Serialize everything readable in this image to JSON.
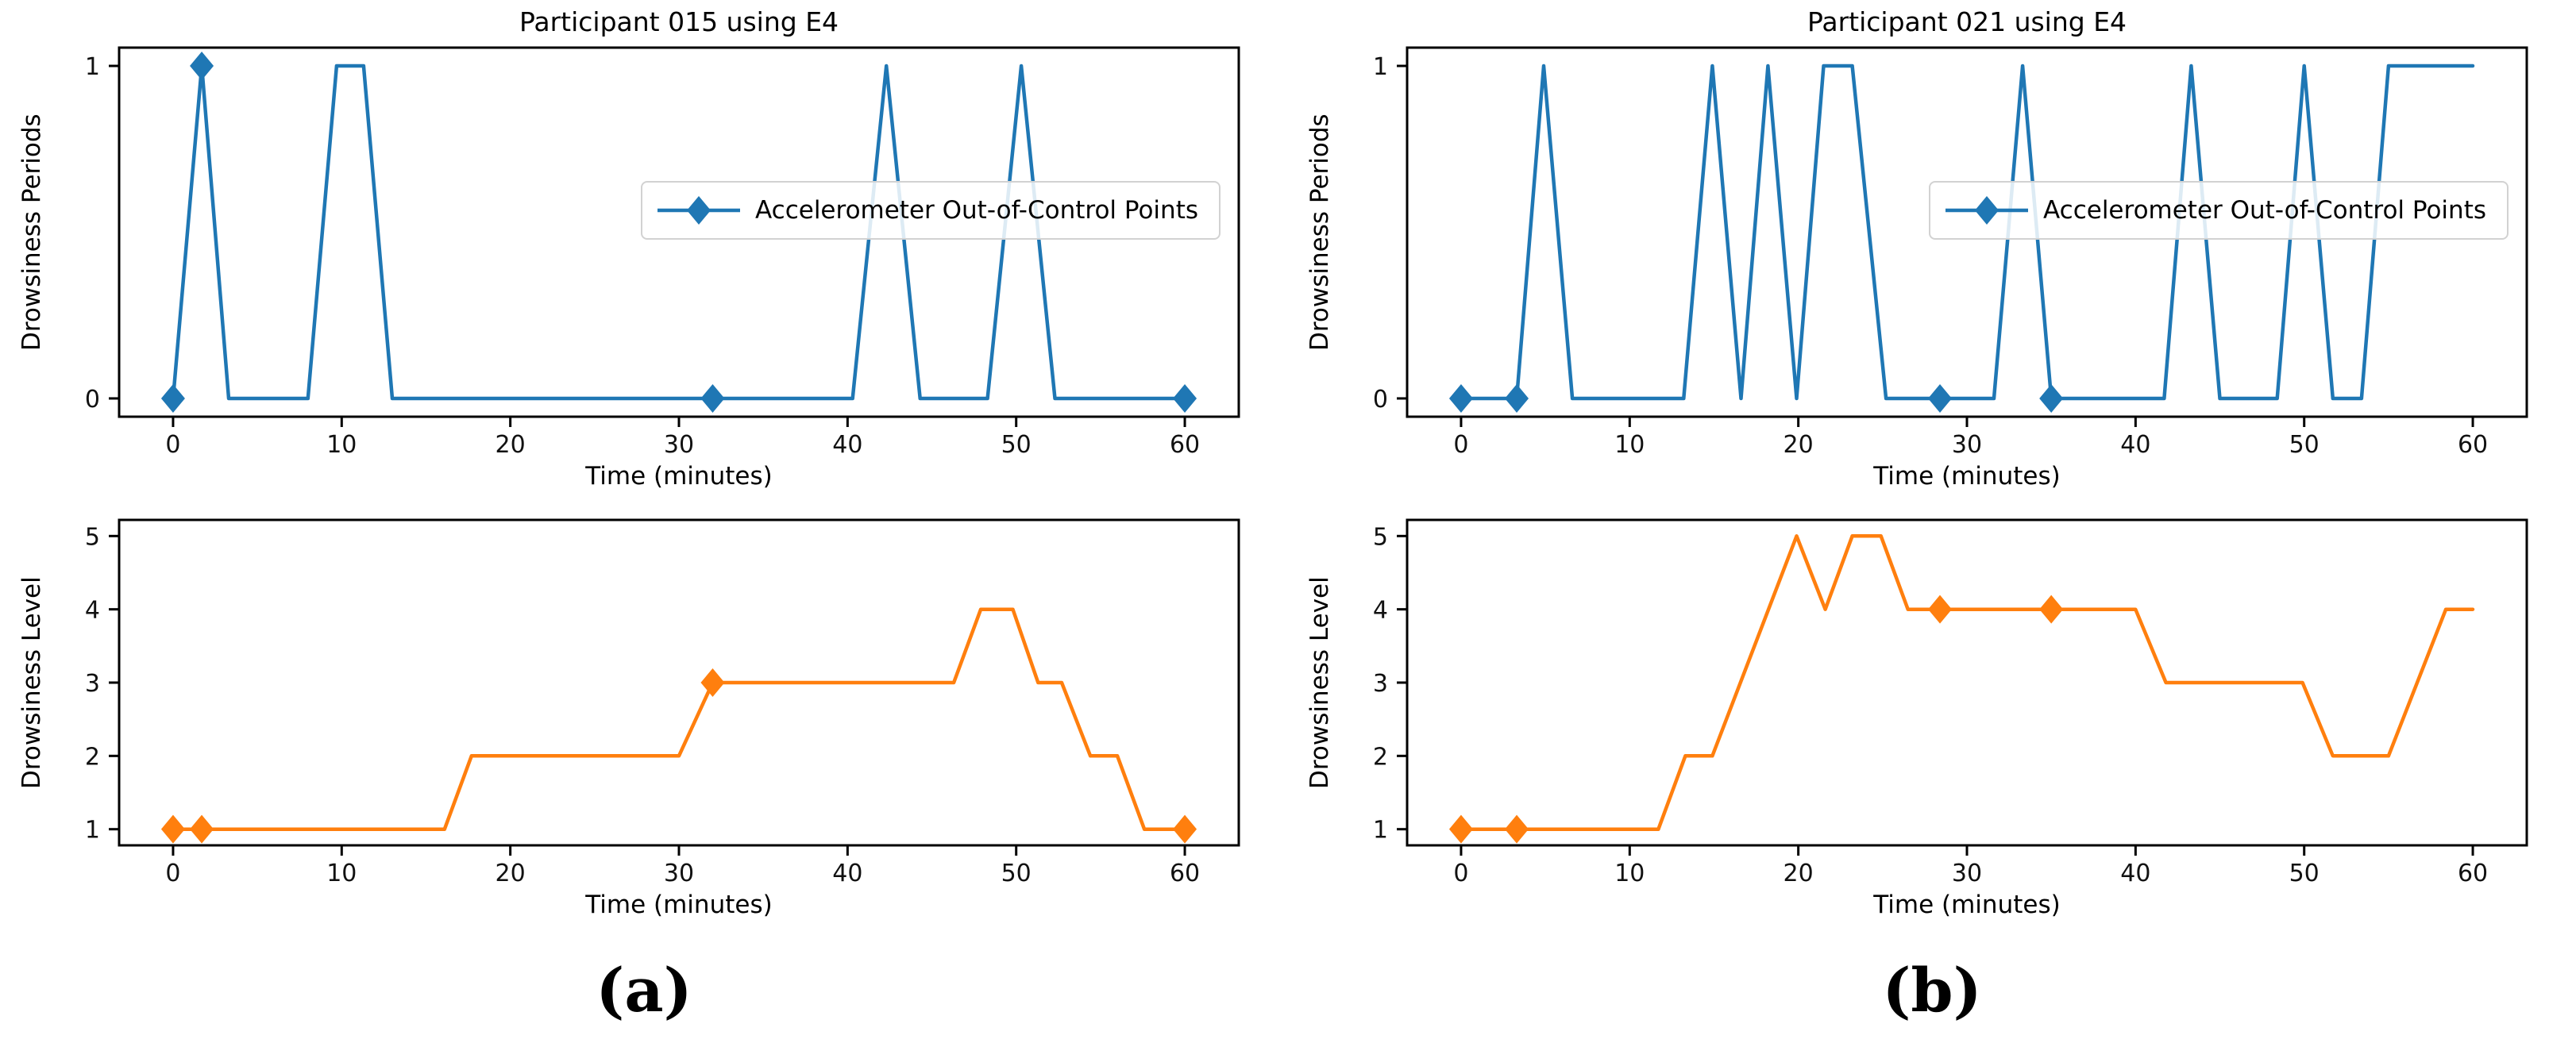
{
  "figure": {
    "background": "#ffffff",
    "captions": {
      "a": "(a)",
      "b": "(b)"
    }
  },
  "colors": {
    "periods_line": "#1f77b4",
    "levels_line": "#ff7f0e",
    "axis": "#000000",
    "legend_border": "#d2d2d2"
  },
  "chart_data": [
    {
      "id": "participant-015-drowsiness-periods",
      "type": "line",
      "title": "Participant 015 using E4",
      "xlabel": "Time (minutes)",
      "ylabel": "Drowsiness Periods",
      "legend_label": "Accelerometer Out-of-Control Points",
      "show_legend": true,
      "color": "#1f77b4",
      "xlim": [
        -3.2,
        63.2
      ],
      "ylim": [
        -0.055,
        1.055
      ],
      "xticks": [
        0,
        10,
        20,
        30,
        40,
        50,
        60
      ],
      "yticks": [
        0,
        1
      ],
      "grid": false,
      "line_points": [
        [
          0,
          0
        ],
        [
          1.7,
          1
        ],
        [
          3.3,
          0
        ],
        [
          8,
          0
        ],
        [
          9.7,
          1
        ],
        [
          11.3,
          1
        ],
        [
          13,
          0
        ],
        [
          40.3,
          0
        ],
        [
          42.3,
          1
        ],
        [
          44.3,
          0
        ],
        [
          48.3,
          0
        ],
        [
          50.3,
          1
        ],
        [
          52.3,
          0
        ],
        [
          60,
          0
        ]
      ],
      "marker_points": [
        [
          0,
          0
        ],
        [
          1.7,
          1
        ],
        [
          32,
          0
        ],
        [
          60,
          0
        ]
      ]
    },
    {
      "id": "participant-021-drowsiness-periods",
      "type": "line",
      "title": "Participant 021 using E4",
      "xlabel": "Time (minutes)",
      "ylabel": "Drowsiness Periods",
      "legend_label": "Accelerometer Out-of-Control Points",
      "show_legend": true,
      "color": "#1f77b4",
      "xlim": [
        -3.2,
        63.2
      ],
      "ylim": [
        -0.055,
        1.055
      ],
      "xticks": [
        0,
        10,
        20,
        30,
        40,
        50,
        60
      ],
      "yticks": [
        0,
        1
      ],
      "grid": false,
      "line_points": [
        [
          0,
          0
        ],
        [
          3.3,
          0
        ],
        [
          4.9,
          1
        ],
        [
          6.6,
          0
        ],
        [
          13.2,
          0
        ],
        [
          14.9,
          1
        ],
        [
          16.6,
          0
        ],
        [
          18.2,
          1
        ],
        [
          19.9,
          0
        ],
        [
          21.5,
          1
        ],
        [
          23.2,
          1
        ],
        [
          25.2,
          0
        ],
        [
          31.6,
          0
        ],
        [
          33.3,
          1
        ],
        [
          35,
          0
        ],
        [
          41.7,
          0
        ],
        [
          43.3,
          1
        ],
        [
          45,
          0
        ],
        [
          48.4,
          0
        ],
        [
          50,
          1
        ],
        [
          51.7,
          0
        ],
        [
          53.4,
          0
        ],
        [
          55,
          1
        ],
        [
          60,
          1
        ]
      ],
      "marker_points": [
        [
          0,
          0
        ],
        [
          3.3,
          0
        ],
        [
          28.4,
          0
        ],
        [
          35,
          0
        ]
      ]
    },
    {
      "id": "participant-015-drowsiness-level",
      "type": "line",
      "title": "",
      "xlabel": "Time (minutes)",
      "ylabel": "Drowsiness Level",
      "legend_label": "",
      "show_legend": false,
      "color": "#ff7f0e",
      "xlim": [
        -3.2,
        63.2
      ],
      "ylim": [
        0.78,
        5.22
      ],
      "xticks": [
        0,
        10,
        20,
        30,
        40,
        50,
        60
      ],
      "yticks": [
        1,
        2,
        3,
        4,
        5
      ],
      "grid": false,
      "line_points": [
        [
          0,
          1
        ],
        [
          16.1,
          1
        ],
        [
          17.7,
          2
        ],
        [
          30,
          2
        ],
        [
          32,
          3
        ],
        [
          46.3,
          3
        ],
        [
          47.9,
          4
        ],
        [
          49.8,
          4
        ],
        [
          51.3,
          3
        ],
        [
          52.7,
          3
        ],
        [
          54.4,
          2
        ],
        [
          56,
          2
        ],
        [
          57.6,
          1
        ],
        [
          60,
          1
        ]
      ],
      "marker_points": [
        [
          0,
          1
        ],
        [
          1.7,
          1
        ],
        [
          32,
          3
        ],
        [
          60,
          1
        ]
      ]
    },
    {
      "id": "participant-021-drowsiness-level",
      "type": "line",
      "title": "",
      "xlabel": "Time (minutes)",
      "ylabel": "Drowsiness Level",
      "legend_label": "",
      "show_legend": false,
      "color": "#ff7f0e",
      "xlim": [
        -3.2,
        63.2
      ],
      "ylim": [
        0.78,
        5.22
      ],
      "xticks": [
        0,
        10,
        20,
        30,
        40,
        50,
        60
      ],
      "yticks": [
        1,
        2,
        3,
        4,
        5
      ],
      "grid": false,
      "line_points": [
        [
          0,
          1
        ],
        [
          11.7,
          1
        ],
        [
          13.3,
          2
        ],
        [
          14.9,
          2
        ],
        [
          19.9,
          5
        ],
        [
          21.6,
          4
        ],
        [
          23.2,
          5
        ],
        [
          24.9,
          5
        ],
        [
          26.5,
          4
        ],
        [
          40,
          4
        ],
        [
          41.8,
          3
        ],
        [
          49.9,
          3
        ],
        [
          51.7,
          2
        ],
        [
          55,
          2
        ],
        [
          58.4,
          4
        ],
        [
          60,
          4
        ]
      ],
      "marker_points": [
        [
          0,
          1
        ],
        [
          3.3,
          1
        ],
        [
          28.4,
          4
        ],
        [
          35,
          4
        ]
      ]
    }
  ]
}
